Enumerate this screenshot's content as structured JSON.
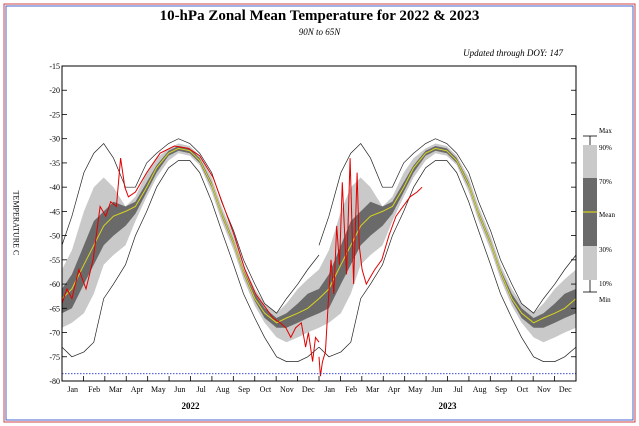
{
  "chart_data": {
    "type": "area",
    "title": "10-hPa Zonal Mean Temperature for 2022 & 2023",
    "subtitle": "90N to 65N",
    "updated": "Updated through DOY: 147",
    "ylabel": "TEMPERATURE C",
    "ylim": [
      -80,
      -15
    ],
    "yticks": [
      -15,
      -20,
      -25,
      -30,
      -35,
      -40,
      -45,
      -50,
      -55,
      -60,
      -65,
      -70,
      -75,
      -80
    ],
    "months": [
      "Jan",
      "Feb",
      "Mar",
      "Apr",
      "May",
      "Jun",
      "Jul",
      "Aug",
      "Sep",
      "Oct",
      "Nov",
      "Dec",
      "Jan",
      "Feb",
      "Mar",
      "Apr",
      "May",
      "Jun",
      "Jul",
      "Aug",
      "Sep",
      "Oct",
      "Nov",
      "Dec"
    ],
    "years": [
      "2022",
      "2023"
    ],
    "reference_line": -78.5,
    "legend": [
      "Max",
      "90%",
      "70%",
      "Mean",
      "30%",
      "10%",
      "Min"
    ],
    "climatology": {
      "doy": [
        1,
        15,
        32,
        46,
        60,
        74,
        91,
        105,
        121,
        135,
        152,
        166,
        182,
        196,
        213,
        227,
        244,
        258,
        274,
        288,
        305,
        319,
        335,
        349,
        365
      ],
      "max": [
        -52,
        -46,
        -37,
        -33,
        -31,
        -34,
        -40,
        -40,
        -35,
        -33,
        -31,
        -30,
        -31,
        -33,
        -37,
        -43,
        -49,
        -55,
        -60,
        -64,
        -66,
        -63,
        -60,
        -57,
        -54
      ],
      "p90": [
        -57,
        -53,
        -45,
        -40,
        -38,
        -40,
        -44,
        -42,
        -37,
        -34,
        -32,
        -31,
        -31.5,
        -33.5,
        -38,
        -44,
        -50,
        -56,
        -61,
        -64,
        -66,
        -64,
        -61,
        -59,
        -57
      ],
      "p70": [
        -61,
        -58,
        -52,
        -47,
        -45,
        -43,
        -44,
        -43,
        -39,
        -35.5,
        -32.5,
        -31.5,
        -32,
        -34,
        -39,
        -45,
        -51,
        -57,
        -62,
        -65,
        -67,
        -66,
        -64,
        -62,
        -61
      ],
      "mean": [
        -63,
        -61,
        -56,
        -52,
        -48,
        -46,
        -45,
        -44,
        -40,
        -36,
        -33,
        -32,
        -32.5,
        -34.5,
        -39.5,
        -45.5,
        -51.5,
        -57.5,
        -63,
        -66,
        -68,
        -67,
        -66,
        -65,
        -63
      ],
      "p30": [
        -66,
        -65,
        -60,
        -56,
        -52,
        -50,
        -48,
        -45.5,
        -41,
        -37,
        -33.5,
        -32.5,
        -33,
        -35,
        -40,
        -46,
        -52,
        -58,
        -63.5,
        -67,
        -69,
        -69,
        -68,
        -67,
        -66
      ],
      "p10": [
        -69,
        -68,
        -66,
        -62,
        -56,
        -54,
        -52,
        -47,
        -42,
        -38,
        -34.5,
        -33,
        -33.5,
        -35.5,
        -41,
        -47,
        -53,
        -59,
        -64.5,
        -68,
        -71,
        -72,
        -71,
        -70,
        -69
      ],
      "min": [
        -73,
        -75,
        -74,
        -72,
        -63,
        -60,
        -56,
        -50,
        -45,
        -40,
        -36,
        -34.5,
        -34.5,
        -37,
        -43,
        -49,
        -56,
        -62,
        -67,
        -71,
        -75,
        -76,
        -76,
        -75,
        -73
      ]
    },
    "series_2022": {
      "doy": [
        1,
        8,
        15,
        25,
        35,
        45,
        55,
        63,
        70,
        78,
        84,
        90,
        95,
        105,
        121,
        140,
        160,
        180,
        196,
        215,
        230,
        245,
        260,
        275,
        290,
        300,
        310,
        318,
        325,
        332,
        340,
        346,
        350,
        356,
        360,
        365
      ],
      "temp": [
        -64,
        -61,
        -63,
        -57,
        -61,
        -55,
        -44,
        -46,
        -43,
        -44,
        -34,
        -40,
        -42,
        -41,
        -37,
        -33,
        -31.5,
        -32,
        -33.5,
        -38,
        -44,
        -50,
        -57,
        -62,
        -65,
        -67,
        -68,
        -69,
        -71,
        -69,
        -68,
        -73,
        -70,
        -76,
        -71,
        -72
      ]
    },
    "series_2023": {
      "doy": [
        1,
        3,
        6,
        10,
        14,
        18,
        22,
        26,
        30,
        34,
        40,
        45,
        50,
        55,
        58,
        62,
        68,
        72,
        80,
        90,
        100,
        110,
        120,
        130,
        140,
        147
      ],
      "temp": [
        -75,
        -79,
        -76,
        -74,
        -64,
        -55,
        -62,
        -48,
        -56,
        -39,
        -58,
        -34,
        -60,
        -37,
        -52,
        -57,
        -60,
        -59,
        -57,
        -55,
        -50,
        -46,
        -44,
        -42,
        -41,
        -40
      ]
    }
  }
}
